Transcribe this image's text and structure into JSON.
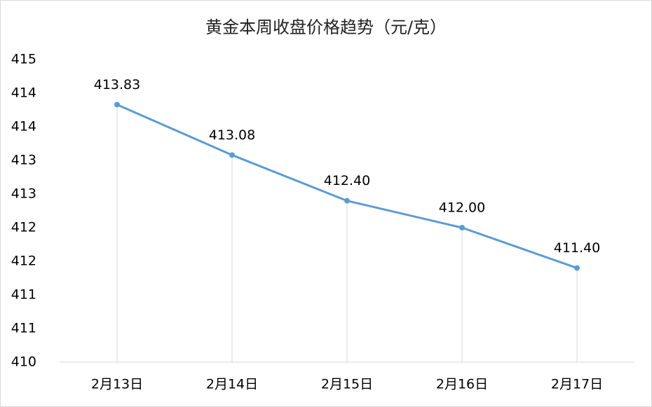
{
  "chart_data": {
    "type": "line",
    "title": "黄金本周收盘价格趋势（元/克）",
    "categories": [
      "2月13日",
      "2月14日",
      "2月15日",
      "2月16日",
      "2月17日"
    ],
    "series": [
      {
        "name": "收盘价格",
        "color": "#5b9bd5",
        "values": [
          413.83,
          413.08,
          412.4,
          412,
          411.4
        ],
        "value_labels": [
          "413.83",
          "413.08",
          "412.40",
          "412.00",
          "411.40"
        ]
      }
    ],
    "ylim": [
      410,
      414.5
    ],
    "yticks": [
      410,
      {
        "value": 410.5,
        "label": "411"
      },
      411,
      {
        "value": 411.5,
        "label": "412"
      },
      412,
      {
        "value": 412.5,
        "label": "413"
      },
      413,
      {
        "value": 413.5,
        "label": "414"
      },
      414,
      {
        "value": 414.5,
        "label": "415"
      }
    ],
    "grid": false,
    "drop_lines": true
  }
}
